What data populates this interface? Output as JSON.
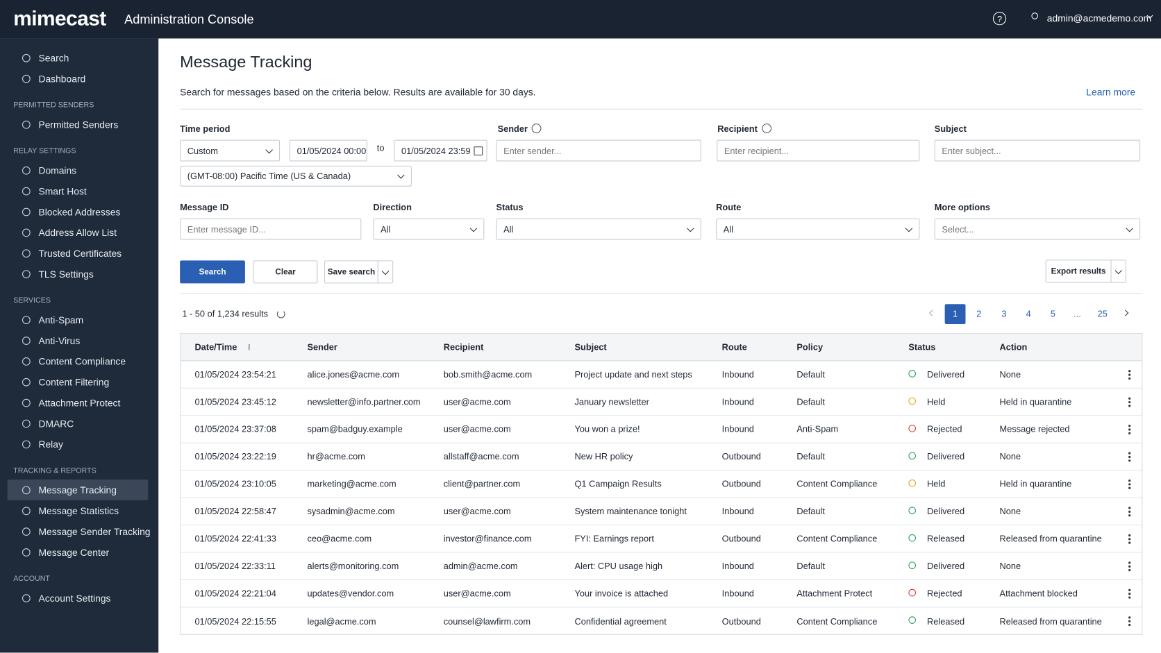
{
  "header": {
    "logo": "mimecast",
    "title": "Administration Console",
    "user": "admin@acmedemo.com"
  },
  "sidebar": {
    "groups": [
      {
        "items": [
          {
            "label": "Search"
          },
          {
            "label": "Dashboard"
          }
        ]
      },
      {
        "title": "PERMITTED SENDERS",
        "items": [
          {
            "label": "Permitted Senders"
          }
        ]
      },
      {
        "title": "RELAY SETTINGS",
        "items": [
          {
            "label": "Domains"
          },
          {
            "label": "Smart Host"
          },
          {
            "label": "Blocked Addresses"
          },
          {
            "label": "Address Allow List"
          },
          {
            "label": "Trusted Certificates"
          },
          {
            "label": "TLS Settings"
          }
        ]
      },
      {
        "title": "SERVICES",
        "items": [
          {
            "label": "Anti-Spam"
          },
          {
            "label": "Anti-Virus"
          },
          {
            "label": "Content Compliance"
          },
          {
            "label": "Content Filtering"
          },
          {
            "label": "Attachment Protect"
          },
          {
            "label": "DMARC"
          },
          {
            "label": "Relay"
          }
        ]
      },
      {
        "title": "TRACKING & REPORTS",
        "items": [
          {
            "label": "Message Tracking",
            "active": true
          },
          {
            "label": "Message Statistics"
          },
          {
            "label": "Message Sender Tracking"
          },
          {
            "label": "Message Center"
          }
        ]
      },
      {
        "title": "ACCOUNT",
        "items": [
          {
            "label": "Account Settings"
          }
        ]
      }
    ]
  },
  "page": {
    "title": "Message Tracking",
    "description": "Search for messages based on the criteria below. Results are available for 30 days.",
    "learn_more": "Learn more"
  },
  "filters": {
    "time_period": {
      "label": "Time period",
      "value": "Custom",
      "from": "01/05/2024 00:00",
      "to_label": "to",
      "to": "01/05/2024 23:59",
      "timezone": "(GMT-08:00) Pacific Time (US & Canada)"
    },
    "sender": {
      "label": "Sender",
      "placeholder": "Enter sender..."
    },
    "recipient": {
      "label": "Recipient",
      "placeholder": "Enter recipient..."
    },
    "subject": {
      "label": "Subject",
      "placeholder": "Enter subject..."
    },
    "message_id": {
      "label": "Message ID",
      "placeholder": "Enter message ID..."
    },
    "direction": {
      "label": "Direction",
      "value": "All"
    },
    "status": {
      "label": "Status",
      "value": "All"
    },
    "route": {
      "label": "Route",
      "value": "All"
    },
    "more_options": {
      "label": "More options",
      "placeholder": "Select..."
    }
  },
  "buttons": {
    "search": "Search",
    "clear": "Clear",
    "save_search": "Save search",
    "export": "Export results"
  },
  "results": {
    "summary": "1 - 50 of 1,234 results",
    "pages": [
      "1",
      "2",
      "3",
      "4",
      "5",
      "...",
      "25"
    ],
    "current": 0
  },
  "table": {
    "columns": [
      "Date/Time",
      "Sender",
      "Recipient",
      "Subject",
      "Route",
      "Policy",
      "Status",
      "Action"
    ],
    "rows": [
      [
        "01/05/2024 23:54:21",
        "alice.jones@acme.com",
        "bob.smith@acme.com",
        "Project update and next steps",
        "Inbound",
        "Default",
        "Delivered",
        "None"
      ],
      [
        "01/05/2024 23:45:12",
        "newsletter@info.partner.com",
        "user@acme.com",
        "January newsletter",
        "Inbound",
        "Default",
        "Held",
        "Held in quarantine"
      ],
      [
        "01/05/2024 23:37:08",
        "spam@badguy.example",
        "user@acme.com",
        "You won a prize!",
        "Inbound",
        "Anti-Spam",
        "Rejected",
        "Message rejected"
      ],
      [
        "01/05/2024 23:22:19",
        "hr@acme.com",
        "allstaff@acme.com",
        "New HR policy",
        "Outbound",
        "Default",
        "Delivered",
        "None"
      ],
      [
        "01/05/2024 23:10:05",
        "marketing@acme.com",
        "client@partner.com",
        "Q1 Campaign Results",
        "Outbound",
        "Content Compliance",
        "Held",
        "Held in quarantine"
      ],
      [
        "01/05/2024 22:58:47",
        "sysadmin@acme.com",
        "user@acme.com",
        "System maintenance tonight",
        "Inbound",
        "Default",
        "Delivered",
        "None"
      ],
      [
        "01/05/2024 22:41:33",
        "ceo@acme.com",
        "investor@finance.com",
        "FYI: Earnings report",
        "Outbound",
        "Content Compliance",
        "Released",
        "Released from quarantine"
      ],
      [
        "01/05/2024 22:33:11",
        "alerts@monitoring.com",
        "admin@acme.com",
        "Alert: CPU usage high",
        "Inbound",
        "Default",
        "Delivered",
        "None"
      ],
      [
        "01/05/2024 22:21:04",
        "updates@vendor.com",
        "user@acme.com",
        "Your invoice is attached",
        "Inbound",
        "Attachment Protect",
        "Rejected",
        "Attachment blocked"
      ],
      [
        "01/05/2024 22:15:55",
        "legal@acme.com",
        "counsel@lawfirm.com",
        "Confidential agreement",
        "Outbound",
        "Content Compliance",
        "Released",
        "Released from quarantine"
      ]
    ],
    "status_colors": [
      "#2e9e5b",
      "#e8a317",
      "#d83a3a",
      "#2e9e5b",
      "#e8a317",
      "#2e9e5b",
      "#2e9e5b",
      "#2e9e5b",
      "#d83a3a",
      "#2e9e5b"
    ]
  }
}
